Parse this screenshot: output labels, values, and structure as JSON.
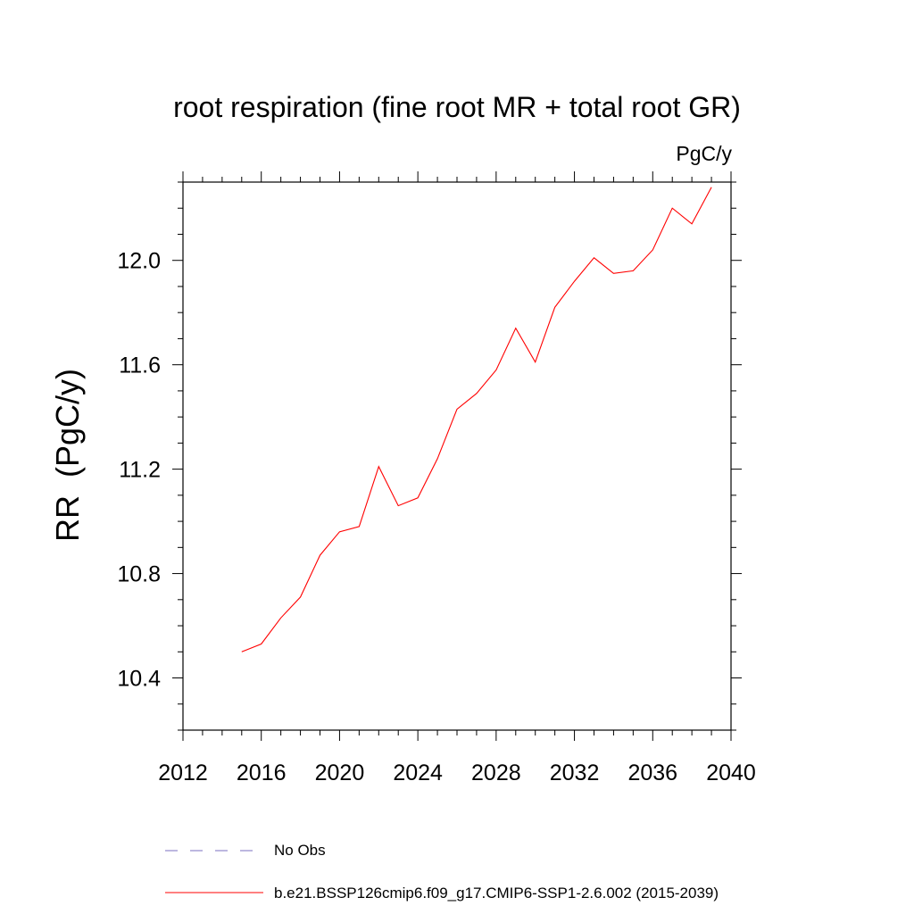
{
  "chart_data": {
    "type": "line",
    "title": "root respiration (fine root MR + total root GR)",
    "units": "PgC/y",
    "ylabel": "RR  (PgC/y)",
    "xlabel": "",
    "xlim": [
      2012,
      2040
    ],
    "ylim": [
      10.2,
      12.3
    ],
    "xticks": [
      2012,
      2016,
      2020,
      2024,
      2028,
      2032,
      2036,
      2040
    ],
    "xtick_labels": [
      "2012",
      "2016",
      "2020",
      "2024",
      "2028",
      "2032",
      "2036",
      "2040"
    ],
    "yticks": [
      10.4,
      10.8,
      11.2,
      11.6,
      12.0
    ],
    "ytick_labels": [
      "10.4",
      "10.8",
      "11.2",
      "11.6",
      "12.0"
    ],
    "grid": false,
    "legend_position": "bottom",
    "series": [
      {
        "name": "b.e21.BSSP126cmip6.f09_g17.CMIP6-SSP1-2.6.002 (2015-2039)",
        "color": "#ff0000",
        "style": "solid",
        "x": [
          2015,
          2016,
          2017,
          2018,
          2019,
          2020,
          2021,
          2022,
          2023,
          2024,
          2025,
          2026,
          2027,
          2028,
          2029,
          2030,
          2031,
          2032,
          2033,
          2034,
          2035,
          2036,
          2037,
          2038,
          2039
        ],
        "y": [
          10.5,
          10.53,
          10.63,
          10.71,
          10.87,
          10.96,
          10.98,
          11.21,
          11.06,
          11.09,
          11.24,
          11.43,
          11.49,
          11.58,
          11.74,
          11.61,
          11.82,
          11.92,
          12.01,
          11.95,
          11.96,
          12.04,
          12.2,
          12.14,
          12.28
        ]
      }
    ],
    "legend": [
      {
        "label": "No Obs",
        "color": "#7b6fc0",
        "style": "dashed"
      },
      {
        "label": "b.e21.BSSP126cmip6.f09_g17.CMIP6-SSP1-2.6.002 (2015-2039)",
        "color": "#ff0000",
        "style": "solid"
      }
    ]
  }
}
